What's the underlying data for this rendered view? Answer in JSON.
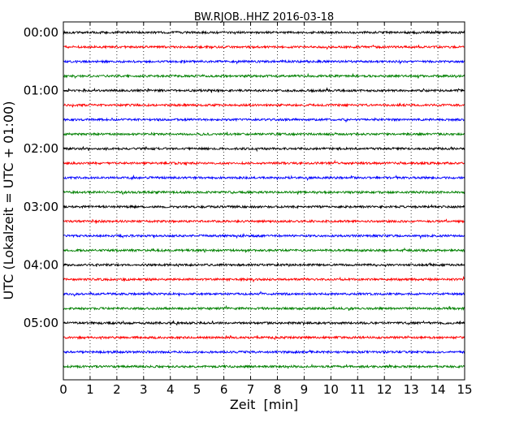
{
  "chart_data": {
    "type": "line",
    "title": "BW.RJOB..HHZ 2016-03-18",
    "xlabel": "Zeit  [min]",
    "ylabel": "UTC (Lokalzeit = UTC + 01:00)",
    "xlim": [
      0,
      15
    ],
    "x_ticks": [
      "0",
      "1",
      "2",
      "3",
      "4",
      "5",
      "6",
      "7",
      "8",
      "9",
      "10",
      "11",
      "12",
      "13",
      "14",
      "15"
    ],
    "y_ticks": [
      "00:00",
      "01:00",
      "02:00",
      "03:00",
      "04:00",
      "05:00"
    ],
    "grid": "vertical dotted",
    "trace_interval_minutes": 15,
    "trace_count": 24,
    "colors": [
      "#000000",
      "#ff0000",
      "#0000ff",
      "#008000"
    ]
  }
}
